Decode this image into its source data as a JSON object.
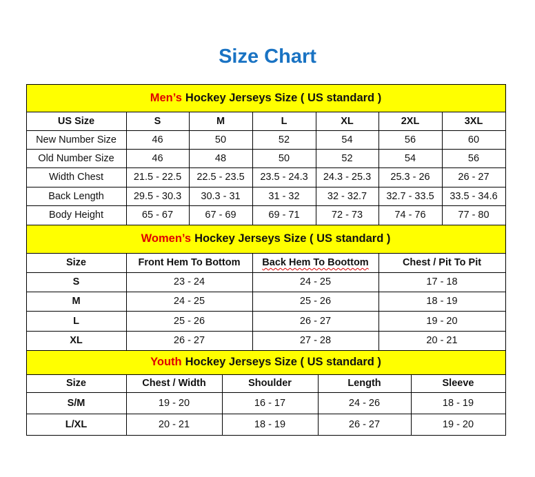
{
  "title": "Size Chart",
  "colors": {
    "title": "#1a73c3",
    "band": "#ffff00",
    "highlight": "#e00000"
  },
  "mens": {
    "band_highlight": "Men’s",
    "band_text": "Hockey Jerseys Size ( US standard )",
    "header": [
      "US Size",
      "S",
      "M",
      "L",
      "XL",
      "2XL",
      "3XL"
    ],
    "rows": [
      [
        "New Number Size",
        "46",
        "50",
        "52",
        "54",
        "56",
        "60"
      ],
      [
        "Old Number Size",
        "46",
        "48",
        "50",
        "52",
        "54",
        "56"
      ],
      [
        "Width Chest",
        "21.5 - 22.5",
        "22.5 - 23.5",
        "23.5 - 24.3",
        "24.3 - 25.3",
        "25.3 - 26",
        "26 - 27"
      ],
      [
        "Back Length",
        "29.5 - 30.3",
        "30.3 - 31",
        "31 - 32",
        "32 - 32.7",
        "32.7 - 33.5",
        "33.5 - 34.6"
      ],
      [
        "Body Height",
        "65 - 67",
        "67 - 69",
        "69 - 71",
        "72 - 73",
        "74 - 76",
        "77 - 80"
      ]
    ]
  },
  "womens": {
    "band_highlight": "Women’s",
    "band_text": "Hockey Jerseys Size ( US standard )",
    "header": [
      "Size",
      "Front Hem To Bottom",
      "Back Hem To Boottom",
      "Chest / Pit To Pit"
    ],
    "rows": [
      [
        "S",
        "23 - 24",
        "24 - 25",
        "17 - 18"
      ],
      [
        "M",
        "24 - 25",
        "25 - 26",
        "18 - 19"
      ],
      [
        "L",
        "25 - 26",
        "26 - 27",
        "19 - 20"
      ],
      [
        "XL",
        "26 - 27",
        "27 - 28",
        "20 - 21"
      ]
    ]
  },
  "youth": {
    "band_highlight": "Youth",
    "band_text": "Hockey Jerseys Size ( US standard )",
    "header": [
      "Size",
      "Chest / Width",
      "Shoulder",
      "Length",
      "Sleeve"
    ],
    "rows": [
      [
        "S/M",
        "19 - 20",
        "16 - 17",
        "24 - 26",
        "18 - 19"
      ],
      [
        "L/XL",
        "20 - 21",
        "18 - 19",
        "26 - 27",
        "19 - 20"
      ]
    ]
  }
}
